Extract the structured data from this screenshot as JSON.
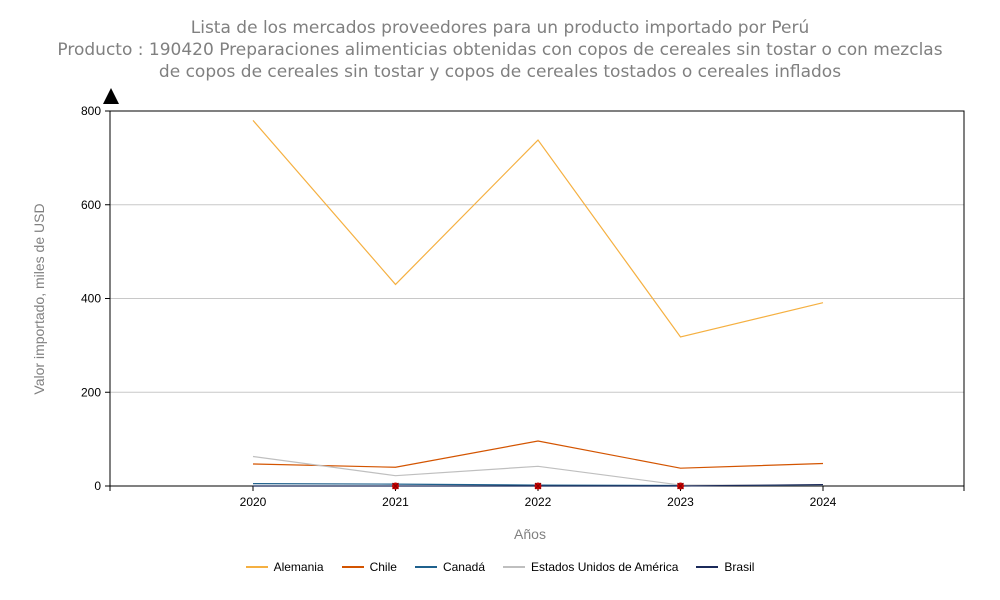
{
  "title_lines": [
    "Lista de los mercados proveedores para un producto importado por Perú",
    "Producto : 190420 Preparaciones alimenticias obtenidas con copos de cereales sin tostar o con mezclas",
    "de copos de cereales sin tostar y copos de cereales tostados o cereales inflados"
  ],
  "chart_data": {
    "type": "line",
    "xlabel": "Años",
    "ylabel": "Valor importado, miles de USD",
    "categories": [
      "2020",
      "2021",
      "2022",
      "2023",
      "2024"
    ],
    "ylim": [
      0,
      800
    ],
    "yticks": [
      0,
      200,
      400,
      600,
      800
    ],
    "grid": true,
    "legend_position": "bottom",
    "series": [
      {
        "name": "Alemania",
        "color": "#F5B041",
        "values": [
          780,
          430,
          738,
          318,
          391
        ]
      },
      {
        "name": "Chile",
        "color": "#D35400",
        "values": [
          47,
          40,
          96,
          38,
          48
        ]
      },
      {
        "name": "Canadá",
        "color": "#1F618D",
        "values": [
          5,
          4,
          2,
          1,
          2
        ]
      },
      {
        "name": "Estados Unidos de América",
        "color": "#BFBFBF",
        "values": [
          63,
          22,
          42,
          2,
          2
        ]
      },
      {
        "name": "Brasil",
        "color": "#1B2A5A",
        "values": [
          0,
          0,
          0,
          0,
          3
        ]
      }
    ],
    "markers": [
      {
        "x": "2021",
        "y": 0,
        "color": "#CC0000"
      },
      {
        "x": "2022",
        "y": 0,
        "color": "#CC0000"
      },
      {
        "x": "2023",
        "y": 0,
        "color": "#CC0000"
      }
    ]
  }
}
